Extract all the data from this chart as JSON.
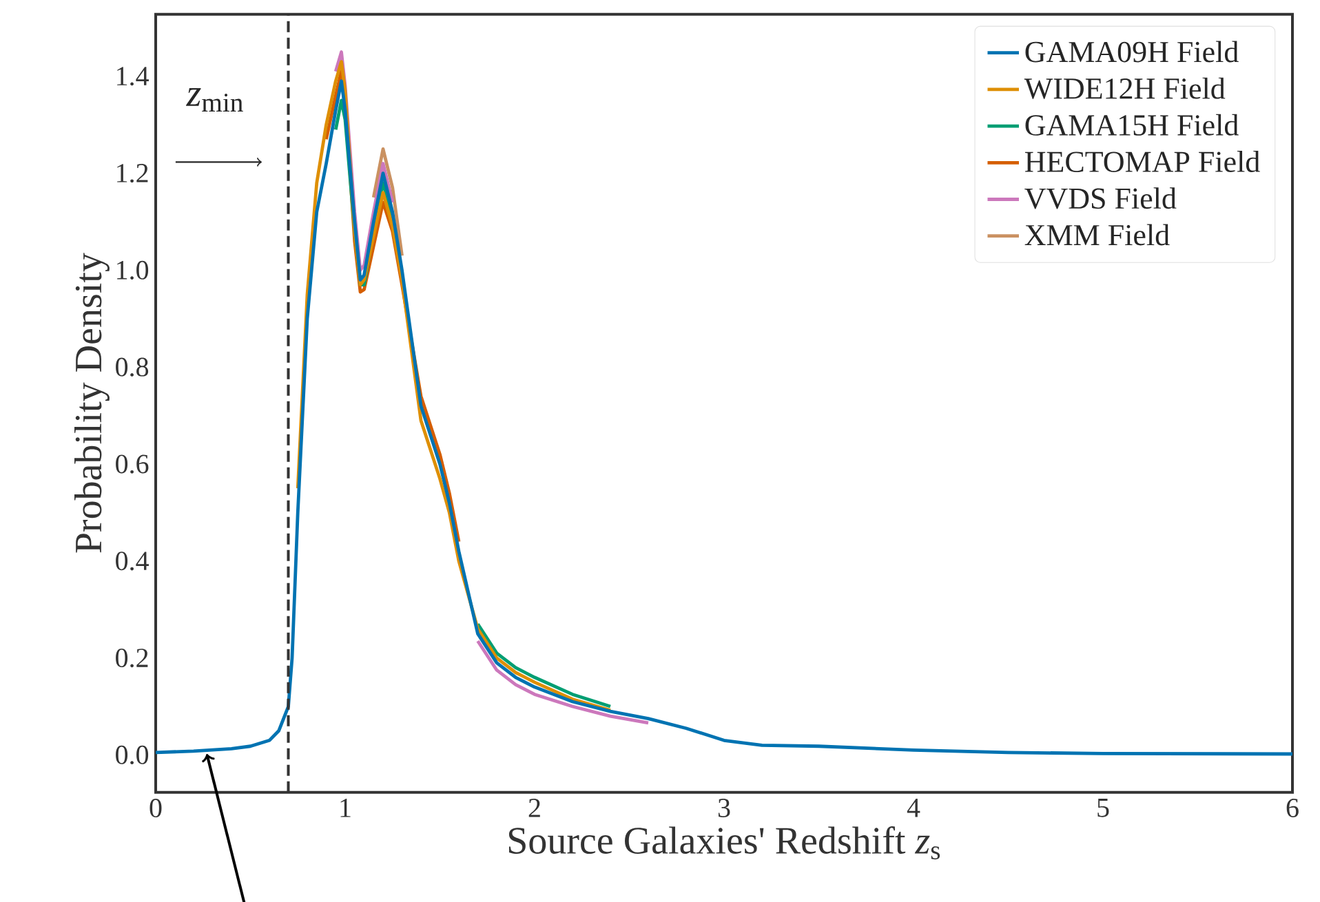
{
  "chart_data": {
    "type": "line",
    "xlabel": "Source Galaxies' Redshift *z*$_{s}$",
    "ylabel": "Probability Density",
    "x": [
      0,
      0.2,
      0.4,
      0.5,
      0.6,
      0.65,
      0.7,
      0.72,
      0.75,
      0.8,
      0.85,
      0.9,
      0.95,
      0.98,
      1.0,
      1.05,
      1.08,
      1.1,
      1.15,
      1.2,
      1.25,
      1.3,
      1.4,
      1.5,
      1.55,
      1.6,
      1.7,
      1.8,
      1.9,
      2.0,
      2.2,
      2.4,
      2.6,
      2.8,
      3.0,
      3.2,
      3.5,
      4.0,
      4.5,
      5.0,
      6.0
    ],
    "series": [
      {
        "name": "GAMA09H Field",
        "color": "#0173b2",
        "values": [
          0.005,
          0.008,
          0.013,
          0.018,
          0.03,
          0.05,
          0.1,
          0.2,
          0.5,
          0.9,
          1.12,
          1.22,
          1.33,
          1.39,
          1.33,
          1.1,
          0.98,
          0.99,
          1.1,
          1.2,
          1.12,
          1.0,
          0.72,
          0.6,
          0.52,
          0.42,
          0.25,
          0.19,
          0.16,
          0.14,
          0.11,
          0.09,
          0.075,
          0.055,
          0.03,
          0.02,
          0.018,
          0.01,
          0.005,
          0.003,
          0.002
        ]
      },
      {
        "name": "WIDE12H Field",
        "color": "#de8f05",
        "values": [
          null,
          null,
          null,
          null,
          null,
          null,
          null,
          null,
          0.55,
          0.95,
          1.18,
          1.3,
          1.39,
          1.43,
          1.37,
          1.08,
          0.97,
          0.98,
          1.07,
          1.16,
          1.09,
          0.98,
          0.69,
          0.57,
          0.5,
          0.4,
          0.26,
          0.2,
          0.17,
          0.15,
          0.115,
          0.092,
          null,
          null,
          null,
          null,
          null,
          null,
          null,
          null,
          null
        ]
      },
      {
        "name": "GAMA15H Field",
        "color": "#029e73",
        "values": [
          null,
          null,
          null,
          null,
          null,
          null,
          null,
          null,
          null,
          null,
          null,
          null,
          1.29,
          1.35,
          1.31,
          1.08,
          0.97,
          0.97,
          1.08,
          1.18,
          1.11,
          0.99,
          null,
          null,
          null,
          null,
          0.27,
          0.21,
          0.18,
          0.16,
          0.125,
          0.1,
          null,
          null,
          null,
          null,
          null,
          null,
          null,
          null,
          null
        ]
      },
      {
        "name": "HECTOMAP Field",
        "color": "#d55e00",
        "values": [
          null,
          null,
          null,
          null,
          null,
          null,
          null,
          null,
          null,
          null,
          null,
          1.27,
          1.36,
          1.41,
          1.35,
          1.06,
          0.955,
          0.96,
          1.05,
          1.14,
          1.08,
          0.97,
          0.74,
          0.62,
          0.54,
          0.44,
          null,
          null,
          null,
          null,
          null,
          null,
          null,
          null,
          null,
          null,
          null,
          null,
          null,
          null,
          null
        ]
      },
      {
        "name": "VVDS Field",
        "color": "#cc78bc",
        "values": [
          null,
          null,
          null,
          null,
          null,
          null,
          null,
          null,
          null,
          null,
          null,
          null,
          1.41,
          1.45,
          1.38,
          1.12,
          1.0,
          1.01,
          1.12,
          1.22,
          1.14,
          null,
          null,
          null,
          null,
          null,
          0.235,
          0.175,
          0.145,
          0.125,
          0.1,
          0.08,
          0.066,
          null,
          null,
          null,
          null,
          null,
          null,
          null,
          null
        ]
      },
      {
        "name": "XMM Field",
        "color": "#ca9161",
        "values": [
          null,
          null,
          null,
          null,
          null,
          null,
          null,
          null,
          null,
          null,
          null,
          null,
          null,
          null,
          null,
          null,
          null,
          null,
          1.15,
          1.25,
          1.17,
          1.03,
          null,
          null,
          null,
          null,
          null,
          null,
          null,
          null,
          null,
          null,
          null,
          null,
          null,
          null,
          null,
          null,
          null,
          null,
          null
        ]
      }
    ],
    "xlim": [
      0,
      6
    ],
    "ylim": [
      -0.077,
      1.528
    ],
    "xticks": [
      0,
      1,
      2,
      3,
      4,
      5,
      6
    ],
    "yticks": [
      {
        "value": 0,
        "label": "0.0"
      },
      {
        "value": 0.2,
        "label": "0.2"
      },
      {
        "value": 0.4,
        "label": "0.4"
      },
      {
        "value": 0.6,
        "label": "0.6"
      },
      {
        "value": 0.8,
        "label": "0.8"
      },
      {
        "value": 1.0,
        "label": "1.0"
      },
      {
        "value": 1.2,
        "label": "1.2"
      },
      {
        "value": 1.4,
        "label": "1.4"
      }
    ],
    "ref_lines": [
      {
        "axis": "x",
        "value": 0.7,
        "label": "*z*$_{min}$",
        "color": "#333333",
        "line_style": "dashed"
      }
    ],
    "legend": "top right",
    "line_style": "solid"
  }
}
